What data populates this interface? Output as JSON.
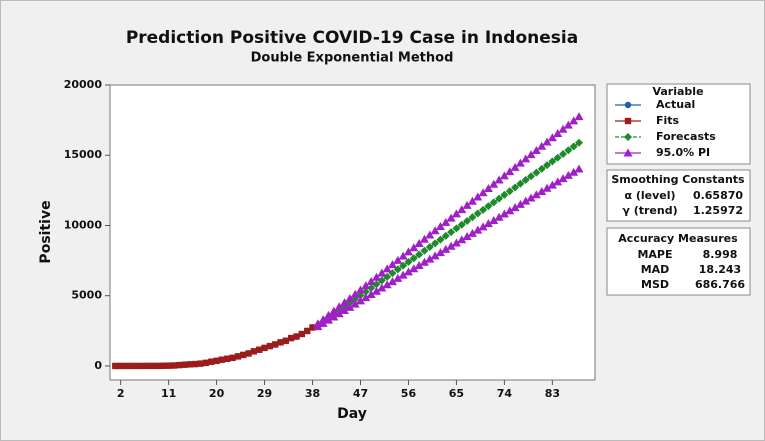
{
  "chart_data": {
    "type": "line",
    "title": "Prediction Positive COVID-19 Case in Indonesia",
    "subtitle": "Double Exponential Method",
    "x_label": "Day",
    "y_label": "Positive",
    "xlim": [
      0,
      91
    ],
    "ylim": [
      -1000,
      20000
    ],
    "xticks": [
      2,
      11,
      20,
      29,
      38,
      47,
      56,
      65,
      74,
      83
    ],
    "yticks": [
      0,
      5000,
      10000,
      15000,
      20000
    ],
    "legend_title": "Variable",
    "series": [
      {
        "name": "Actual",
        "color": "#1f5fa8",
        "marker": "circle",
        "x": [
          1,
          2,
          3,
          4,
          5,
          6,
          7,
          8,
          9,
          10,
          11,
          12,
          13,
          14,
          15,
          16,
          17,
          18,
          19,
          20,
          21,
          22,
          23,
          24,
          25,
          26,
          27,
          28,
          29,
          30,
          31,
          32,
          33,
          34,
          35,
          36,
          37,
          38
        ],
        "values": [
          0,
          0,
          2,
          2,
          2,
          2,
          4,
          4,
          6,
          19,
          27,
          34,
          69,
          96,
          117,
          134,
          172,
          227,
          309,
          369,
          450,
          514,
          579,
          686,
          790,
          893,
          1046,
          1155,
          1285,
          1414,
          1528,
          1677,
          1790,
          1986,
          2092,
          2273,
          2491,
          2738
        ]
      },
      {
        "name": "Fits",
        "color": "#9c1c1c",
        "marker": "square",
        "x": [
          1,
          2,
          3,
          4,
          5,
          6,
          7,
          8,
          9,
          10,
          11,
          12,
          13,
          14,
          15,
          16,
          17,
          18,
          19,
          20,
          21,
          22,
          23,
          24,
          25,
          26,
          27,
          28,
          29,
          30,
          31,
          32,
          33,
          34,
          35,
          36,
          37,
          38
        ],
        "values": [
          0,
          1,
          1,
          2,
          2,
          2,
          3,
          4,
          5,
          10,
          22,
          32,
          58,
          90,
          115,
          135,
          168,
          222,
          300,
          365,
          445,
          512,
          578,
          680,
          785,
          890,
          1040,
          1155,
          1285,
          1415,
          1530,
          1680,
          1795,
          1985,
          2095,
          2275,
          2490,
          2740
        ]
      },
      {
        "name": "Forecasts",
        "color": "#1e8a2c",
        "marker": "diamond",
        "dashed": true,
        "x": [
          39,
          40,
          41,
          42,
          43,
          44,
          45,
          46,
          47,
          48,
          49,
          50,
          51,
          52,
          53,
          54,
          55,
          56,
          57,
          58,
          59,
          60,
          61,
          62,
          63,
          64,
          65,
          66,
          67,
          68,
          69,
          70,
          71,
          72,
          73,
          74,
          75,
          76,
          77,
          78,
          79,
          80,
          81,
          82,
          83,
          84,
          85,
          86,
          87,
          88
        ],
        "values": [
          2900,
          3165,
          3430,
          3695,
          3960,
          4225,
          4490,
          4755,
          5020,
          5285,
          5550,
          5815,
          6080,
          6345,
          6610,
          6875,
          7140,
          7405,
          7670,
          7935,
          8200,
          8465,
          8730,
          8995,
          9260,
          9525,
          9790,
          10055,
          10320,
          10585,
          10850,
          11115,
          11380,
          11645,
          11910,
          12175,
          12440,
          12705,
          12970,
          13235,
          13500,
          13765,
          14030,
          14295,
          14560,
          14825,
          15090,
          15355,
          15620,
          15885
        ]
      },
      {
        "name": "95.0% PI",
        "color": "#a020c8",
        "marker": "triangle",
        "x": [
          39,
          40,
          41,
          42,
          43,
          44,
          45,
          46,
          47,
          48,
          49,
          50,
          51,
          52,
          53,
          54,
          55,
          56,
          57,
          58,
          59,
          60,
          61,
          62,
          63,
          64,
          65,
          66,
          67,
          68,
          69,
          70,
          71,
          72,
          73,
          74,
          75,
          76,
          77,
          78,
          79,
          80,
          81,
          82,
          83,
          84,
          85,
          86,
          87,
          88
        ],
        "upper": [
          3000,
          3301,
          3602,
          3903,
          4204,
          4505,
          4806,
          5107,
          5408,
          5709,
          6010,
          6311,
          6612,
          6913,
          7214,
          7515,
          7816,
          8117,
          8418,
          8719,
          9020,
          9321,
          9622,
          9923,
          10224,
          10525,
          10826,
          11127,
          11428,
          11729,
          12030,
          12331,
          12632,
          12933,
          13234,
          13535,
          13836,
          14137,
          14438,
          14739,
          15040,
          15341,
          15642,
          15943,
          16244,
          16545,
          16846,
          17147,
          17448,
          17749
        ],
        "lower": [
          2800,
          3029,
          3258,
          3487,
          3716,
          3945,
          4174,
          4403,
          4632,
          4861,
          5090,
          5319,
          5548,
          5777,
          6006,
          6235,
          6464,
          6693,
          6922,
          7151,
          7380,
          7609,
          7838,
          8067,
          8296,
          8525,
          8754,
          8983,
          9212,
          9441,
          9670,
          9899,
          10128,
          10357,
          10586,
          10815,
          11044,
          11273,
          11502,
          11731,
          11960,
          12189,
          12418,
          12647,
          12876,
          13105,
          13334,
          13563,
          13792,
          14021
        ]
      }
    ],
    "smoothing": {
      "title": "Smoothing Constants",
      "rows": [
        [
          "α (level)",
          "0.65870"
        ],
        [
          "γ (trend)",
          "1.25972"
        ]
      ]
    },
    "accuracy": {
      "title": "Accuracy Measures",
      "rows": [
        [
          "MAPE",
          8.998
        ],
        [
          "MAD",
          18.243
        ],
        [
          "MSD",
          686.766
        ]
      ]
    }
  }
}
